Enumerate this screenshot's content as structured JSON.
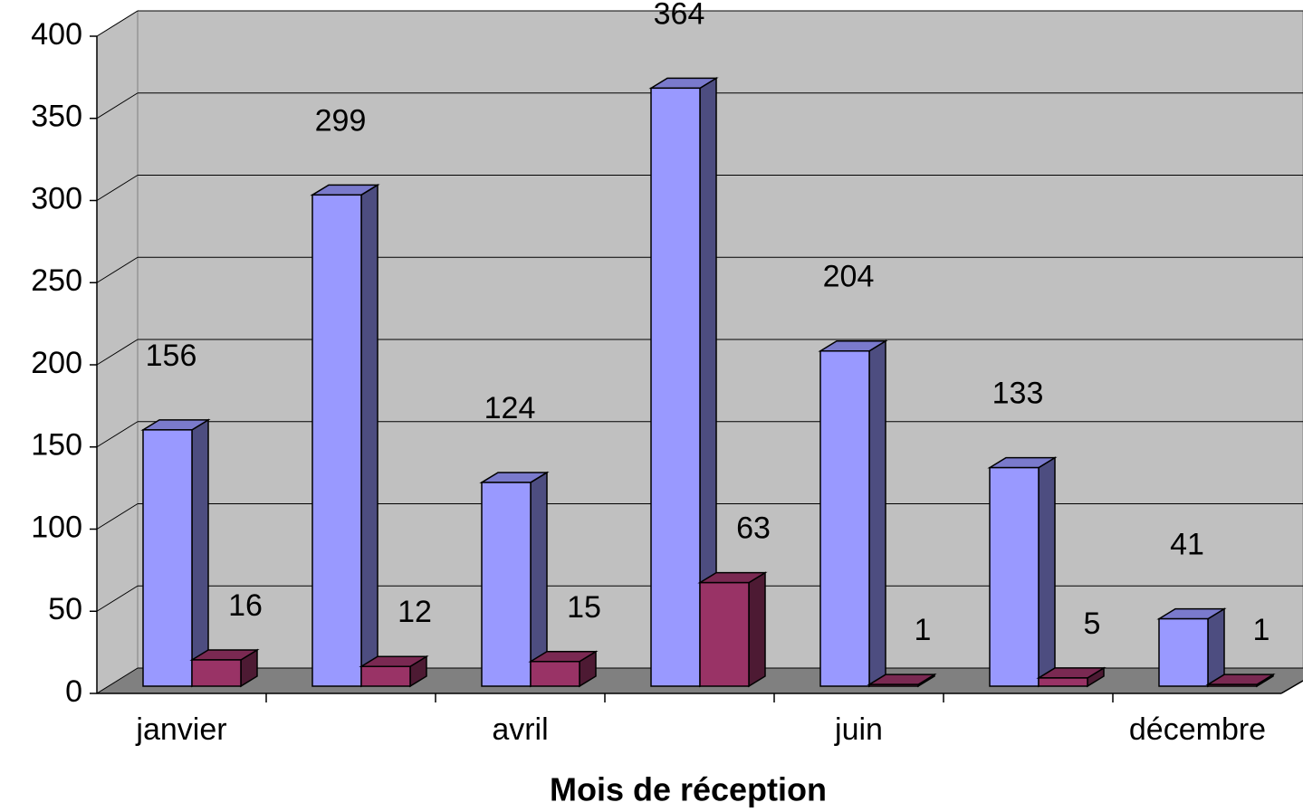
{
  "chart_data": {
    "type": "bar3d",
    "categories": [
      "janvier",
      null,
      "avril",
      null,
      "juin",
      null,
      "décembre"
    ],
    "series": [
      {
        "color": "#9999ff",
        "values": [
          156,
          299,
          124,
          364,
          204,
          133,
          41
        ]
      },
      {
        "color": "#993366",
        "values": [
          16,
          12,
          15,
          63,
          1,
          5,
          1
        ]
      }
    ],
    "ylim": [
      0,
      400
    ],
    "yticks": [
      0,
      50,
      100,
      150,
      200,
      250,
      300,
      350,
      400
    ],
    "xlabel": "Mois de réception",
    "grid": true
  }
}
